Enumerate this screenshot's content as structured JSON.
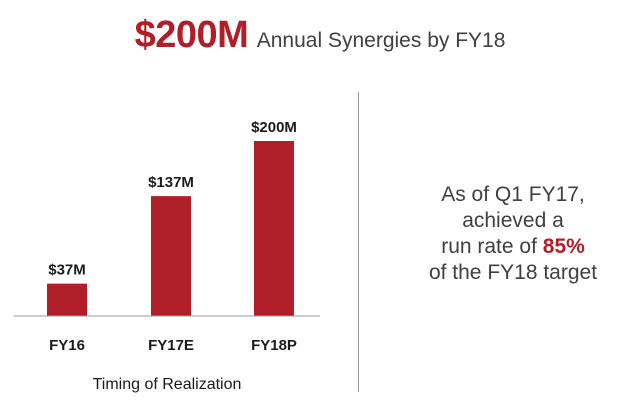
{
  "header": {
    "amount": "$200M",
    "rest": "Annual Synergies by FY18"
  },
  "callout": {
    "line1": "As of Q1 FY17,",
    "line2": "achieved a",
    "line3_prefix": "run rate of ",
    "line3_pct": "85%",
    "line4": "of the FY18 target"
  },
  "chart_data": {
    "type": "bar",
    "categories": [
      "FY16",
      "FY17E",
      "FY18P"
    ],
    "values": [
      37,
      137,
      200
    ],
    "value_labels": [
      "$37M",
      "$137M",
      "$200M"
    ],
    "xlabel": "Timing of Realization",
    "ylim": [
      0,
      200
    ],
    "grid": false,
    "bar_color": "#b01e2a"
  }
}
